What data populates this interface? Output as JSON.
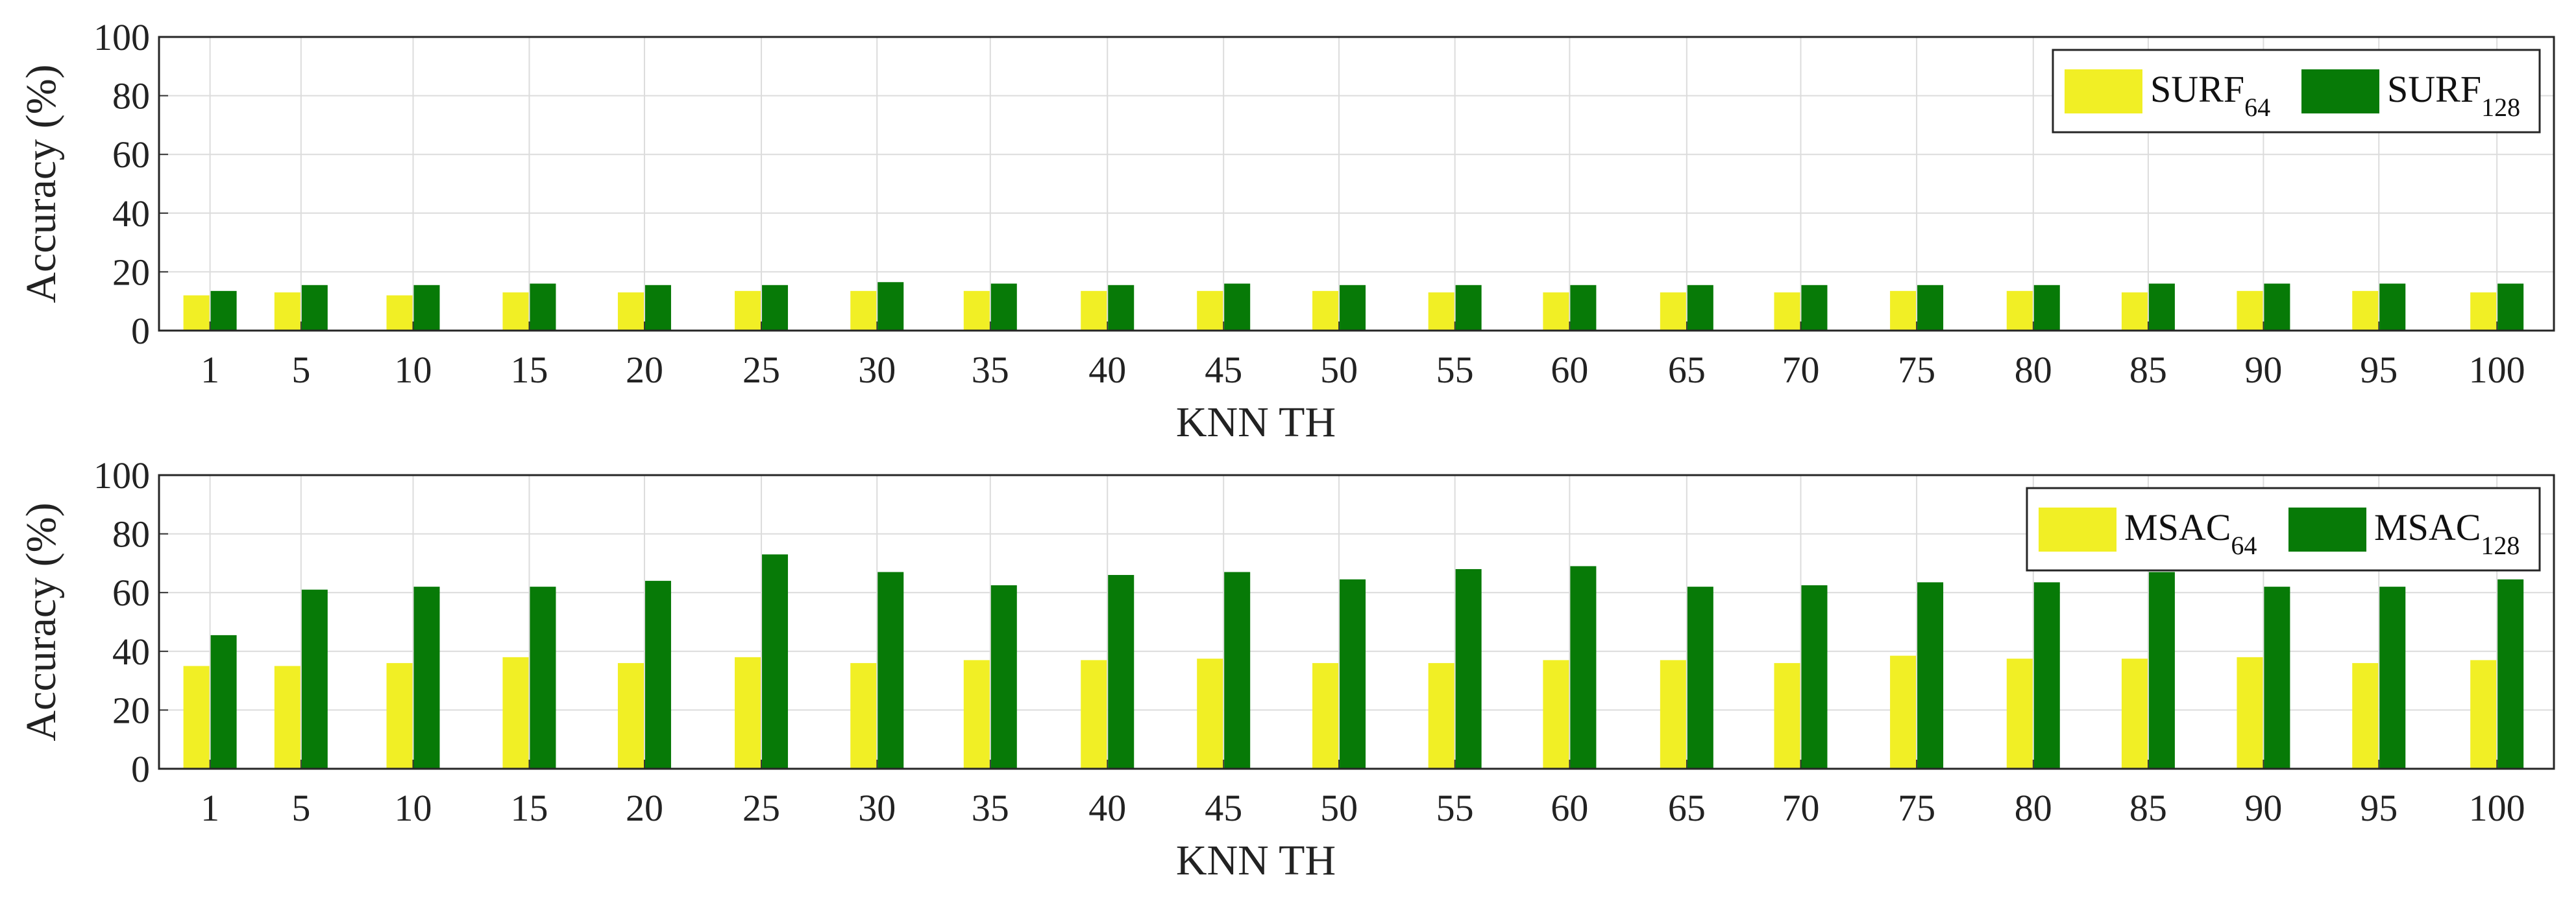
{
  "chart_data": [
    {
      "type": "bar",
      "categories": [
        "1",
        "5",
        "10",
        "15",
        "20",
        "25",
        "30",
        "35",
        "40",
        "45",
        "50",
        "55",
        "60",
        "65",
        "70",
        "75",
        "80",
        "85",
        "90",
        "95",
        "100"
      ],
      "series": [
        {
          "name": "SURF",
          "name_sub": "64",
          "color": "#f1ef25",
          "values": [
            12,
            13,
            12,
            13,
            13,
            13.5,
            13.5,
            13.5,
            13.5,
            13.5,
            13.5,
            13,
            13,
            13,
            13,
            13.5,
            13.5,
            13,
            13.5,
            13.5,
            13
          ]
        },
        {
          "name": "SURF",
          "name_sub": "128",
          "color": "#077a07",
          "values": [
            13.5,
            15.5,
            15.5,
            16,
            15.5,
            15.5,
            16.5,
            16,
            15.5,
            16,
            15.5,
            15.5,
            15.5,
            15.5,
            15.5,
            15.5,
            15.5,
            16,
            16,
            16,
            16
          ]
        }
      ],
      "xlabel": "KNN TH",
      "ylabel": "Accuracy (%)",
      "ylim": [
        0,
        100
      ],
      "yticks": [
        "0",
        "20",
        "40",
        "60",
        "80",
        "100"
      ],
      "grid": true,
      "legend": "top-right"
    },
    {
      "type": "bar",
      "categories": [
        "1",
        "5",
        "10",
        "15",
        "20",
        "25",
        "30",
        "35",
        "40",
        "45",
        "50",
        "55",
        "60",
        "65",
        "70",
        "75",
        "80",
        "85",
        "90",
        "95",
        "100"
      ],
      "series": [
        {
          "name": "MSAC",
          "name_sub": "64",
          "color": "#f1ef25",
          "values": [
            35,
            35,
            36,
            38,
            36,
            38,
            36,
            37,
            37,
            37.5,
            36,
            36,
            37,
            37,
            36,
            38.5,
            37.5,
            37.5,
            38,
            36,
            37
          ]
        },
        {
          "name": "MSAC",
          "name_sub": "128",
          "color": "#077a07",
          "values": [
            45.5,
            61,
            62,
            62,
            64,
            73,
            67,
            62.5,
            66,
            67,
            64.5,
            68,
            69,
            62,
            62.5,
            63.5,
            63.5,
            67,
            62,
            62,
            64.5
          ]
        }
      ],
      "xlabel": "KNN TH",
      "ylabel": "Accuracy (%)",
      "ylim": [
        0,
        100
      ],
      "yticks": [
        "0",
        "20",
        "40",
        "60",
        "80",
        "100"
      ],
      "grid": true,
      "legend": "top-right"
    }
  ]
}
